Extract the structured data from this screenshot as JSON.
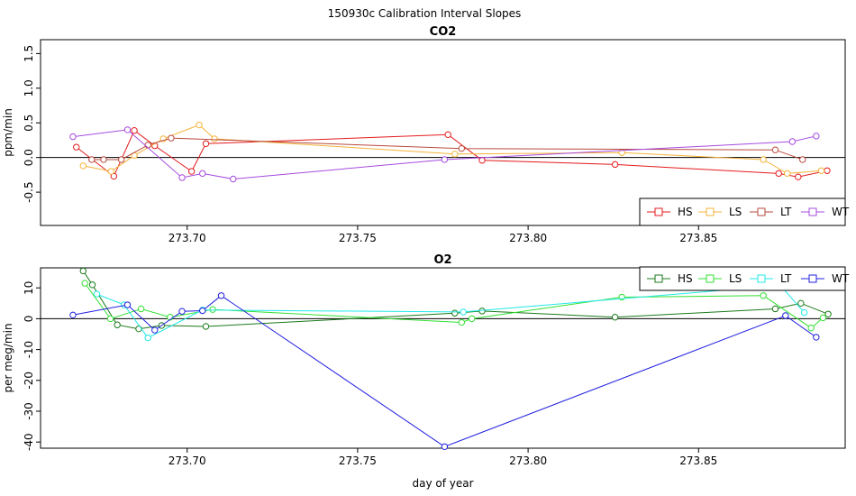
{
  "figure": {
    "title": "150930c   Calibration Interval Slopes"
  },
  "chart_data": [
    {
      "type": "line",
      "title": "CO2",
      "xlabel": "",
      "ylabel": "ppm/min",
      "xlim": [
        273.657,
        273.893
      ],
      "ylim": [
        -0.98,
        1.7
      ],
      "xticks": [
        273.7,
        273.75,
        273.8,
        273.85
      ],
      "xtick_labels": [
        "273.70",
        "273.75",
        "273.80",
        "273.85"
      ],
      "yticks": [
        -0.5,
        0.0,
        0.5,
        1.0,
        1.5
      ],
      "ytick_labels": [
        "-0.5",
        "0.0",
        "0.5",
        "1.0",
        "1.5"
      ],
      "hline": 0,
      "grid": false,
      "legend_position": "bottom-right",
      "series": [
        {
          "name": "HS",
          "color": "#e41a1c",
          "x": [
            273.6675,
            273.6785,
            273.6845,
            273.6905,
            273.7013,
            273.7055,
            273.7765,
            273.7865,
            273.8255,
            273.8735,
            273.8792,
            273.8877
          ],
          "y": [
            0.15,
            -0.27,
            0.39,
            0.17,
            -0.2,
            0.2,
            0.33,
            -0.04,
            -0.1,
            -0.23,
            -0.28,
            -0.19
          ]
        },
        {
          "name": "LS",
          "color": "#f5b33a",
          "x": [
            273.6695,
            273.6777,
            273.6845,
            273.693,
            273.7035,
            273.708,
            273.7785,
            273.8275,
            273.869,
            273.876,
            273.886
          ],
          "y": [
            -0.12,
            -0.2,
            0.03,
            0.27,
            0.47,
            0.27,
            0.05,
            0.07,
            -0.03,
            -0.23,
            -0.19
          ]
        },
        {
          "name": "LT",
          "color": "#b94a3c",
          "x": [
            273.672,
            273.6755,
            273.6807,
            273.6885,
            273.6953,
            273.7805,
            273.8725,
            273.8805
          ],
          "y": [
            -0.03,
            -0.03,
            -0.03,
            0.18,
            0.28,
            0.13,
            0.11,
            -0.03
          ]
        },
        {
          "name": "WT",
          "color": "#a64bdf",
          "x": [
            273.6665,
            273.6825,
            273.6985,
            273.7045,
            273.7135,
            273.7755,
            273.8775,
            273.8845
          ],
          "y": [
            0.3,
            0.4,
            -0.29,
            -0.23,
            -0.31,
            -0.03,
            0.23,
            0.31
          ]
        }
      ]
    },
    {
      "type": "line",
      "title": "O2",
      "xlabel": "day of year",
      "ylabel": "per meg/min",
      "xlim": [
        273.657,
        273.893
      ],
      "ylim": [
        -42,
        16.5
      ],
      "xticks": [
        273.7,
        273.75,
        273.8,
        273.85
      ],
      "xtick_labels": [
        "273.70",
        "273.75",
        "273.80",
        "273.85"
      ],
      "yticks": [
        -40,
        -30,
        -20,
        -10,
        0,
        10
      ],
      "ytick_labels": [
        "-40",
        "-30",
        "-20",
        "-10",
        "0",
        "10"
      ],
      "hline": 0,
      "grid": false,
      "legend_position": "top-right",
      "series": [
        {
          "name": "HS",
          "color": "#1b7a1b",
          "x": [
            273.6695,
            273.6722,
            273.6795,
            273.6858,
            273.6925,
            273.7055,
            273.7785,
            273.7865,
            273.8255,
            273.8725,
            273.88,
            273.888
          ],
          "y": [
            15.5,
            11.0,
            -2.0,
            -3.3,
            -2.2,
            -2.5,
            1.8,
            2.5,
            0.5,
            3.2,
            5.0,
            1.5
          ]
        },
        {
          "name": "LS",
          "color": "#33e033",
          "x": [
            273.67,
            273.6775,
            273.6865,
            273.695,
            273.7075,
            273.7805,
            273.7835,
            273.8275,
            273.869,
            273.883,
            273.8865
          ],
          "y": [
            11.5,
            0.0,
            3.2,
            0.5,
            3.0,
            -1.2,
            0.0,
            7.0,
            7.5,
            -3.0,
            0.3
          ]
        },
        {
          "name": "LT",
          "color": "#22e8e8",
          "x": [
            273.6735,
            273.6815,
            273.6885,
            273.7045,
            273.781,
            273.874,
            273.881
          ],
          "y": [
            8.0,
            4.5,
            -6.2,
            2.8,
            2.2,
            10.8,
            2.0
          ]
        },
        {
          "name": "WT",
          "color": "#2020e0",
          "x": [
            273.6665,
            273.6825,
            273.6905,
            273.6985,
            273.7045,
            273.71,
            273.7755,
            273.8755,
            273.8845
          ],
          "y": [
            1.2,
            4.5,
            -3.7,
            2.4,
            2.6,
            7.5,
            -41.5,
            1.0,
            -6.0
          ]
        }
      ]
    }
  ]
}
